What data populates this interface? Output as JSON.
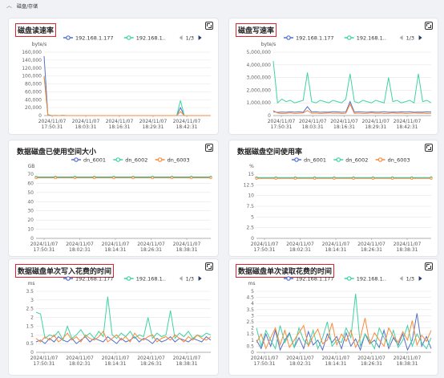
{
  "section": {
    "title": "磁盘/存储"
  },
  "panels": [
    {
      "id": "disk-read",
      "title": "磁盘读速率",
      "boxed": true,
      "unit": "byte/s",
      "legend": [
        "192.168.1.177",
        "192.168.1.."
      ],
      "pager": "1/3",
      "colors": [
        "#5470c6",
        "#3ed3a3",
        "#fa8a3a"
      ],
      "yticks": [
        "0",
        "20,000",
        "40,000",
        "60,000",
        "80,000",
        "100,000",
        "120,000",
        "140,000",
        "160,000"
      ],
      "ymax": 160000,
      "xlabels": [
        [
          "2024/11/07",
          "17:50:31"
        ],
        [
          "2024/11/07",
          "18:03:31"
        ],
        [
          "2024/11/07",
          "18:16:31"
        ],
        [
          "2024/11/07",
          "18:29:31"
        ],
        [
          "2024/11/07",
          "18:42:31"
        ]
      ],
      "series": [
        {
          "name": "192.168.1.177",
          "values": [
            150000,
            2000,
            0,
            0,
            0,
            500,
            0,
            0,
            0,
            0,
            0,
            0,
            0,
            0,
            0,
            0,
            0,
            0,
            0,
            0,
            0,
            0,
            0,
            0,
            0,
            0,
            0,
            0,
            0,
            0,
            0,
            0,
            0,
            0,
            0,
            0,
            20000,
            0,
            0,
            0,
            0,
            0,
            0,
            0,
            0
          ]
        },
        {
          "name": "192.168.1..",
          "values": [
            100000,
            2000,
            0,
            500,
            0,
            0,
            0,
            0,
            0,
            0,
            0,
            0,
            0,
            0,
            0,
            0,
            0,
            0,
            0,
            0,
            0,
            0,
            0,
            0,
            0,
            0,
            0,
            0,
            0,
            0,
            0,
            0,
            0,
            0,
            0,
            0,
            38000,
            0,
            0,
            0,
            0,
            0,
            0,
            0,
            0
          ]
        },
        {
          "name": "",
          "values": [
            98000,
            1000,
            0,
            0,
            0,
            0,
            0,
            0,
            0,
            0,
            0,
            0,
            0,
            0,
            0,
            0,
            0,
            0,
            0,
            0,
            0,
            0,
            0,
            0,
            0,
            0,
            0,
            0,
            0,
            0,
            0,
            0,
            0,
            0,
            0,
            0,
            10000,
            0,
            0,
            0,
            0,
            0,
            0,
            0,
            0
          ]
        }
      ]
    },
    {
      "id": "disk-write",
      "title": "磁盘写速率",
      "boxed": true,
      "unit": "byte/s",
      "legend": [
        "192.168.1.177",
        "192.168.1.."
      ],
      "pager": "1/3",
      "colors": [
        "#5470c6",
        "#3ed3a3",
        "#fa8a3a"
      ],
      "yticks": [
        "0",
        "1,000,000",
        "2,000,000",
        "3,000,000",
        "4,000,000",
        "5,000,000"
      ],
      "ymax": 5000000,
      "xlabels": [
        [
          "2024/11/07",
          "17:50:31"
        ],
        [
          "2024/11/07",
          "18:03:31"
        ],
        [
          "2024/11/07",
          "18:16:31"
        ],
        [
          "2024/11/07",
          "18:29:31"
        ],
        [
          "2024/11/07",
          "18:42:31"
        ]
      ],
      "series": [
        {
          "name": "192.168.1.177",
          "values": [
            300000,
            250000,
            280000,
            260000,
            300000,
            270000,
            290000,
            260000,
            700000,
            280000,
            300000,
            260000,
            280000,
            270000,
            300000,
            290000,
            260000,
            280000,
            1100000,
            270000,
            300000,
            280000,
            260000,
            290000,
            270000,
            280000,
            300000,
            260000,
            280000,
            270000,
            290000,
            280000,
            300000,
            260000,
            280000,
            270000,
            290000,
            280000
          ]
        },
        {
          "name": "192.168.1..",
          "values": [
            4300000,
            1000000,
            1300000,
            1100000,
            1200000,
            1000000,
            1100000,
            1200000,
            3400000,
            1100000,
            1000000,
            1200000,
            1100000,
            1000000,
            1200000,
            1100000,
            1000000,
            1300000,
            3300000,
            1100000,
            1000000,
            1200000,
            1100000,
            1000000,
            1200000,
            1100000,
            1000000,
            3000000,
            1100000,
            1200000,
            1000000,
            1100000,
            1200000,
            1000000,
            3300000,
            1100000,
            1200000,
            1000000
          ]
        },
        {
          "name": "",
          "values": [
            400000,
            200000,
            150000,
            180000,
            200000,
            160000,
            180000,
            200000,
            400000,
            170000,
            190000,
            160000,
            180000,
            200000,
            170000,
            190000,
            160000,
            180000,
            900000,
            170000,
            190000,
            160000,
            180000,
            200000,
            170000,
            190000,
            160000,
            180000,
            200000,
            170000,
            190000,
            160000,
            180000,
            200000,
            170000,
            190000,
            160000,
            180000
          ]
        }
      ]
    },
    {
      "id": "disk-used",
      "title": "数据磁盘已使用空间大小",
      "boxed": false,
      "unit": "GB",
      "legend": [
        "dn_6001",
        "dn_6002",
        "dn_6003"
      ],
      "pager": "",
      "colors": [
        "#5470c6",
        "#3ed3a3",
        "#fa8a3a"
      ],
      "yticks": [
        "0",
        "10",
        "20",
        "30",
        "40",
        "50",
        "60",
        "70"
      ],
      "ymax": 70,
      "xlabels": [
        [
          "2024/11/07",
          "17:50:31"
        ],
        [
          "2024/11/07",
          "18:02:31"
        ],
        [
          "2024/11/07",
          "18:14:31"
        ],
        [
          "2024/11/07",
          "18:26:31"
        ],
        [
          "2024/11/07",
          "18:38:31"
        ]
      ],
      "series": [
        {
          "name": "dn_6001",
          "values": [
            66.5,
            66.5,
            66.5,
            66.5,
            66.5,
            66.5,
            66.5,
            66.5,
            66.5,
            66.5
          ]
        },
        {
          "name": "dn_6002",
          "values": [
            67,
            67,
            67,
            67,
            67,
            67,
            67,
            67,
            67,
            67
          ]
        },
        {
          "name": "dn_6003",
          "values": [
            66,
            66,
            66,
            66,
            66,
            66,
            66,
            66,
            66,
            66
          ]
        }
      ]
    },
    {
      "id": "disk-usage",
      "title": "数据磁盘空间使用率",
      "boxed": false,
      "unit": "%",
      "legend": [
        "dn_6001",
        "dn_6002",
        "dn_6003"
      ],
      "pager": "",
      "colors": [
        "#5470c6",
        "#3ed3a3",
        "#fa8a3a"
      ],
      "yticks": [
        "0",
        "2.5",
        "5",
        "7.5",
        "10",
        "12.5",
        "15"
      ],
      "ymax": 15,
      "xlabels": [
        [
          "2024/11/07",
          "17:50:31"
        ],
        [
          "2024/11/07",
          "18:02:31"
        ],
        [
          "2024/11/07",
          "18:14:31"
        ],
        [
          "2024/11/07",
          "18:26:31"
        ],
        [
          "2024/11/07",
          "18:38:31"
        ]
      ],
      "series": [
        {
          "name": "dn_6001",
          "values": [
            14.1,
            14.1,
            14.1,
            14.1,
            14.1,
            14.1,
            14.1,
            14.1,
            14.1,
            14.1
          ]
        },
        {
          "name": "dn_6002",
          "values": [
            14.2,
            14.2,
            14.2,
            14.2,
            14.2,
            14.2,
            14.2,
            14.2,
            14.2,
            14.2
          ]
        },
        {
          "name": "dn_6003",
          "values": [
            14,
            14,
            14,
            14,
            14,
            14,
            14,
            14,
            14,
            14
          ]
        }
      ]
    },
    {
      "id": "write-time",
      "title": "数据磁盘单次写入花费的时间",
      "boxed": true,
      "unit": "ms",
      "legend": [
        "192.168.1.177",
        "192.168.1.."
      ],
      "pager": "1/3",
      "colors": [
        "#5470c6",
        "#3ed3a3",
        "#fa8a3a"
      ],
      "yticks": [
        "0",
        "0.5",
        "1",
        "1.5",
        "2",
        "2.5",
        "3",
        "3.5"
      ],
      "ymax": 3.5,
      "xlabels": [
        [
          "2024/11/07",
          "17:50:31"
        ],
        [
          "2024/11/07",
          "18:02:31"
        ],
        [
          "2024/11/07",
          "18:14:31"
        ],
        [
          "2024/11/07",
          "18:26:31"
        ],
        [
          "2024/11/07",
          "18:38:31"
        ]
      ],
      "series": [
        {
          "name": "192.168.1.177",
          "values": [
            0.6,
            0.7,
            0.5,
            0.8,
            0.6,
            0.9,
            0.7,
            0.6,
            0.8,
            0.5,
            0.7,
            0.9,
            0.6,
            0.8,
            0.7,
            0.6,
            0.9,
            0.7,
            0.5,
            0.8,
            0.6,
            0.7,
            0.9,
            0.6,
            0.8,
            0.7,
            0.5,
            0.8,
            0.6,
            0.7,
            0.9,
            0.6,
            0.8,
            0.7,
            0.6,
            0.8,
            0.7,
            0.6,
            0.9,
            0.7
          ]
        },
        {
          "name": "192.168.1..",
          "values": [
            2.3,
            2.2,
            0.8,
            1.0,
            0.9,
            1.2,
            0.7,
            1.5,
            0.8,
            1.0,
            1.3,
            0.9,
            1.1,
            0.8,
            1.2,
            0.9,
            3.2,
            1.0,
            0.8,
            1.1,
            0.9,
            1.2,
            0.8,
            1.0,
            0.9,
            2.0,
            0.8,
            1.1,
            0.9,
            1.0,
            2.4,
            0.8,
            1.1,
            0.9,
            1.2,
            0.8,
            1.0,
            0.9,
            1.1,
            1.0
          ]
        },
        {
          "name": "",
          "values": [
            0.8,
            0.6,
            0.9,
            0.7,
            1.0,
            0.6,
            0.8,
            1.1,
            0.7,
            0.9,
            0.6,
            1.0,
            0.8,
            0.7,
            0.9,
            1.2,
            0.6,
            0.8,
            1.0,
            0.7,
            0.9,
            0.6,
            1.1,
            0.8,
            0.7,
            0.9,
            1.0,
            0.6,
            0.8,
            0.9,
            0.7,
            1.0,
            0.8,
            0.6,
            0.9,
            0.7,
            1.0,
            0.8,
            0.7,
            0.9
          ]
        }
      ]
    },
    {
      "id": "read-time",
      "title": "数据磁盘单次读取花费的时间",
      "boxed": true,
      "unit": "ms",
      "legend": [
        "192.168.1.177",
        "192.168.1.."
      ],
      "pager": "1/3",
      "colors": [
        "#5470c6",
        "#3ed3a3",
        "#fa8a3a"
      ],
      "yticks": [
        "0",
        "0.5",
        "1",
        "1.5",
        "2",
        "2.5",
        "3",
        "3.5",
        "4",
        "4.5",
        "5"
      ],
      "ymax": 5,
      "xlabels": [
        [
          "2024/11/07",
          "17:50:31"
        ],
        [
          "2024/11/07",
          "18:02:31"
        ],
        [
          "2024/11/07",
          "18:14:31"
        ],
        [
          "2024/11/07",
          "18:26:31"
        ],
        [
          "2024/11/07",
          "18:38:31"
        ]
      ],
      "series": [
        {
          "name": "192.168.1.177",
          "values": [
            1.0,
            0.3,
            1.5,
            0.5,
            1.8,
            0.2,
            1.0,
            1.6,
            0.4,
            1.2,
            0.3,
            1.7,
            0.6,
            1.0,
            0.2,
            1.5,
            0.8,
            1.3,
            0.3,
            1.6,
            0.5,
            1.1,
            0.2,
            1.5,
            0.7,
            1.0,
            0.4,
            1.8,
            0.3,
            1.2,
            0.6,
            1.5,
            0.2,
            1.0,
            3.2,
            0.5,
            1.3,
            0.3
          ]
        },
        {
          "name": "192.168.1..",
          "values": [
            2.0,
            0.5,
            1.8,
            1.0,
            0.3,
            2.2,
            0.8,
            1.5,
            0.4,
            2.0,
            1.0,
            0.6,
            1.8,
            0.3,
            1.2,
            2.5,
            0.5,
            1.0,
            0.8,
            2.0,
            1.2,
            4.8,
            0.5,
            1.5,
            1.0,
            0.3,
            2.0,
            1.2,
            0.6,
            1.8,
            0.4,
            1.0,
            2.2,
            0.5,
            1.5,
            0.8,
            0.3,
            1.2
          ]
        },
        {
          "name": "",
          "values": [
            0.8,
            1.5,
            0.3,
            1.2,
            2.0,
            0.6,
            1.8,
            0.4,
            1.0,
            1.6,
            2.2,
            0.5,
            1.3,
            1.9,
            0.7,
            1.0,
            2.4,
            0.6,
            1.5,
            0.9,
            1.8,
            0.4,
            1.2,
            2.8,
            0.7,
            1.6,
            1.0,
            0.5,
            2.0,
            1.3,
            0.8,
            1.7,
            1.0,
            2.6,
            0.6,
            1.4,
            0.9,
            1.8
          ]
        }
      ]
    }
  ]
}
